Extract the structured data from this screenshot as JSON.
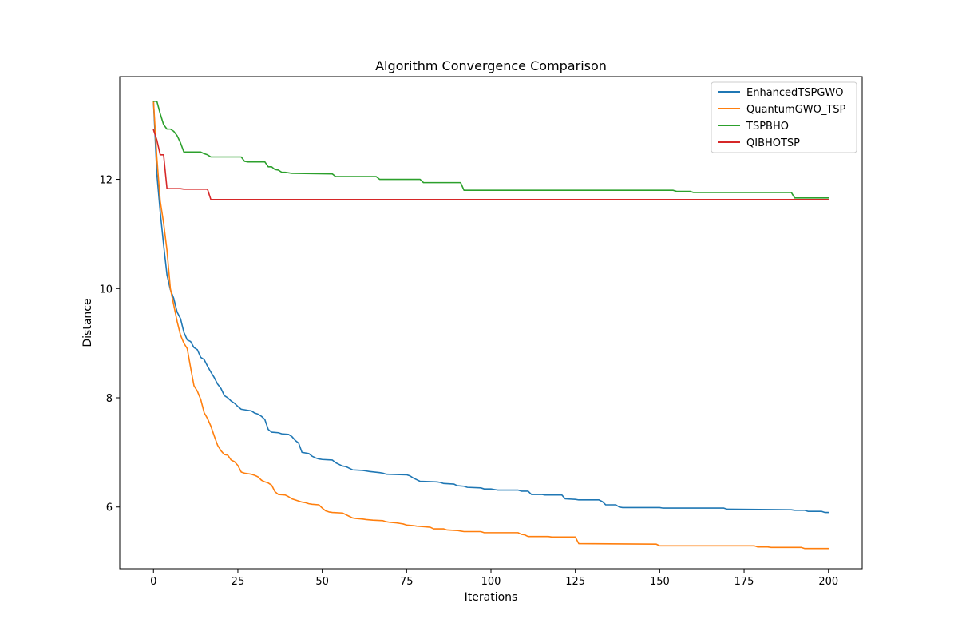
{
  "chart_data": {
    "type": "line",
    "title": "Algorithm Convergence Comparison",
    "xlabel": "Iterations",
    "ylabel": "Distance",
    "xlim": [
      -10,
      210
    ],
    "ylim": [
      4.87,
      13.88
    ],
    "xticks": [
      0,
      25,
      50,
      75,
      100,
      125,
      150,
      175,
      200
    ],
    "yticks": [
      6,
      8,
      10,
      12
    ],
    "grid": false,
    "legend_position": "top-right",
    "series": [
      {
        "name": "EnhancedTSPGWO",
        "color": "#1f77b4",
        "points": [
          [
            0,
            13.43
          ],
          [
            1,
            12.1
          ],
          [
            2,
            11.4
          ],
          [
            3,
            10.8
          ],
          [
            4,
            10.25
          ],
          [
            5,
            9.98
          ],
          [
            6,
            9.82
          ],
          [
            7,
            9.57
          ],
          [
            8,
            9.45
          ],
          [
            9,
            9.2
          ],
          [
            10,
            9.06
          ],
          [
            11,
            9.03
          ],
          [
            12,
            8.92
          ],
          [
            13,
            8.88
          ],
          [
            14,
            8.74
          ],
          [
            15,
            8.7
          ],
          [
            16,
            8.58
          ],
          [
            17,
            8.47
          ],
          [
            18,
            8.37
          ],
          [
            19,
            8.25
          ],
          [
            20,
            8.17
          ],
          [
            21,
            8.04
          ],
          [
            22,
            8.0
          ],
          [
            23,
            7.94
          ],
          [
            24,
            7.9
          ],
          [
            25,
            7.84
          ],
          [
            26,
            7.79
          ],
          [
            28,
            7.77
          ],
          [
            29,
            7.76
          ],
          [
            30,
            7.72
          ],
          [
            31,
            7.7
          ],
          [
            32,
            7.66
          ],
          [
            33,
            7.6
          ],
          [
            34,
            7.42
          ],
          [
            35,
            7.37
          ],
          [
            37,
            7.36
          ],
          [
            38,
            7.34
          ],
          [
            40,
            7.33
          ],
          [
            41,
            7.29
          ],
          [
            42,
            7.22
          ],
          [
            43,
            7.17
          ],
          [
            44,
            7.0
          ],
          [
            46,
            6.98
          ],
          [
            47,
            6.93
          ],
          [
            48,
            6.9
          ],
          [
            49,
            6.88
          ],
          [
            50,
            6.87
          ],
          [
            53,
            6.86
          ],
          [
            54,
            6.81
          ],
          [
            55,
            6.78
          ],
          [
            56,
            6.75
          ],
          [
            57,
            6.74
          ],
          [
            58,
            6.71
          ],
          [
            59,
            6.68
          ],
          [
            62,
            6.67
          ],
          [
            63,
            6.66
          ],
          [
            64,
            6.65
          ],
          [
            67,
            6.63
          ],
          [
            68,
            6.62
          ],
          [
            69,
            6.6
          ],
          [
            75,
            6.59
          ],
          [
            76,
            6.57
          ],
          [
            77,
            6.53
          ],
          [
            78,
            6.5
          ],
          [
            79,
            6.47
          ],
          [
            84,
            6.46
          ],
          [
            85,
            6.45
          ],
          [
            86,
            6.43
          ],
          [
            89,
            6.42
          ],
          [
            90,
            6.39
          ],
          [
            92,
            6.38
          ],
          [
            93,
            6.36
          ],
          [
            97,
            6.35
          ],
          [
            98,
            6.33
          ],
          [
            100,
            6.33
          ],
          [
            101,
            6.32
          ],
          [
            102,
            6.31
          ],
          [
            108,
            6.31
          ],
          [
            109,
            6.29
          ],
          [
            111,
            6.29
          ],
          [
            112,
            6.23
          ],
          [
            115,
            6.23
          ],
          [
            116,
            6.22
          ],
          [
            121,
            6.22
          ],
          [
            122,
            6.15
          ],
          [
            125,
            6.14
          ],
          [
            126,
            6.13
          ],
          [
            132,
            6.13
          ],
          [
            133,
            6.1
          ],
          [
            134,
            6.04
          ],
          [
            137,
            6.04
          ],
          [
            138,
            6.0
          ],
          [
            139,
            5.99
          ],
          [
            150,
            5.99
          ],
          [
            151,
            5.98
          ],
          [
            169,
            5.98
          ],
          [
            170,
            5.96
          ],
          [
            189,
            5.95
          ],
          [
            190,
            5.94
          ],
          [
            193,
            5.94
          ],
          [
            194,
            5.92
          ],
          [
            198,
            5.92
          ],
          [
            199,
            5.9
          ],
          [
            200,
            5.9
          ]
        ]
      },
      {
        "name": "QuantumGWO_TSP",
        "color": "#ff7f0e",
        "points": [
          [
            0,
            13.43
          ],
          [
            1,
            12.4
          ],
          [
            2,
            11.6
          ],
          [
            3,
            11.2
          ],
          [
            4,
            10.7
          ],
          [
            5,
            10.0
          ],
          [
            6,
            9.7
          ],
          [
            7,
            9.4
          ],
          [
            8,
            9.15
          ],
          [
            9,
            9.0
          ],
          [
            10,
            8.9
          ],
          [
            11,
            8.55
          ],
          [
            12,
            8.22
          ],
          [
            13,
            8.12
          ],
          [
            14,
            7.97
          ],
          [
            15,
            7.73
          ],
          [
            16,
            7.62
          ],
          [
            17,
            7.48
          ],
          [
            18,
            7.3
          ],
          [
            19,
            7.13
          ],
          [
            20,
            7.03
          ],
          [
            21,
            6.96
          ],
          [
            22,
            6.95
          ],
          [
            23,
            6.86
          ],
          [
            24,
            6.83
          ],
          [
            25,
            6.76
          ],
          [
            26,
            6.64
          ],
          [
            27,
            6.62
          ],
          [
            29,
            6.6
          ],
          [
            30,
            6.58
          ],
          [
            31,
            6.55
          ],
          [
            32,
            6.49
          ],
          [
            33,
            6.46
          ],
          [
            34,
            6.44
          ],
          [
            35,
            6.4
          ],
          [
            36,
            6.28
          ],
          [
            37,
            6.23
          ],
          [
            39,
            6.22
          ],
          [
            40,
            6.19
          ],
          [
            41,
            6.15
          ],
          [
            42,
            6.13
          ],
          [
            43,
            6.11
          ],
          [
            44,
            6.09
          ],
          [
            45,
            6.08
          ],
          [
            46,
            6.06
          ],
          [
            47,
            6.05
          ],
          [
            49,
            6.04
          ],
          [
            50,
            5.98
          ],
          [
            51,
            5.93
          ],
          [
            52,
            5.91
          ],
          [
            53,
            5.9
          ],
          [
            56,
            5.89
          ],
          [
            57,
            5.86
          ],
          [
            58,
            5.83
          ],
          [
            59,
            5.8
          ],
          [
            60,
            5.79
          ],
          [
            62,
            5.78
          ],
          [
            63,
            5.77
          ],
          [
            65,
            5.76
          ],
          [
            68,
            5.75
          ],
          [
            69,
            5.73
          ],
          [
            70,
            5.72
          ],
          [
            72,
            5.71
          ],
          [
            73,
            5.7
          ],
          [
            74,
            5.69
          ],
          [
            75,
            5.67
          ],
          [
            77,
            5.66
          ],
          [
            78,
            5.65
          ],
          [
            80,
            5.64
          ],
          [
            82,
            5.63
          ],
          [
            83,
            5.6
          ],
          [
            86,
            5.6
          ],
          [
            87,
            5.58
          ],
          [
            90,
            5.57
          ],
          [
            91,
            5.56
          ],
          [
            92,
            5.55
          ],
          [
            97,
            5.55
          ],
          [
            98,
            5.53
          ],
          [
            108,
            5.53
          ],
          [
            109,
            5.5
          ],
          [
            110,
            5.49
          ],
          [
            111,
            5.46
          ],
          [
            117,
            5.46
          ],
          [
            118,
            5.45
          ],
          [
            125,
            5.45
          ],
          [
            126,
            5.33
          ],
          [
            149,
            5.32
          ],
          [
            150,
            5.29
          ],
          [
            178,
            5.29
          ],
          [
            179,
            5.27
          ],
          [
            182,
            5.27
          ],
          [
            183,
            5.26
          ],
          [
            192,
            5.26
          ],
          [
            193,
            5.24
          ],
          [
            200,
            5.24
          ]
        ]
      },
      {
        "name": "TSPBHO",
        "color": "#2ca02c",
        "points": [
          [
            0,
            13.43
          ],
          [
            1,
            13.43
          ],
          [
            2,
            13.2
          ],
          [
            3,
            13.0
          ],
          [
            4,
            12.92
          ],
          [
            5,
            12.92
          ],
          [
            6,
            12.88
          ],
          [
            7,
            12.8
          ],
          [
            8,
            12.67
          ],
          [
            9,
            12.5
          ],
          [
            14,
            12.5
          ],
          [
            15,
            12.47
          ],
          [
            16,
            12.45
          ],
          [
            17,
            12.41
          ],
          [
            26,
            12.41
          ],
          [
            27,
            12.33
          ],
          [
            28,
            12.32
          ],
          [
            33,
            12.32
          ],
          [
            34,
            12.23
          ],
          [
            35,
            12.23
          ],
          [
            36,
            12.18
          ],
          [
            37,
            12.17
          ],
          [
            38,
            12.13
          ],
          [
            39,
            12.13
          ],
          [
            40,
            12.12
          ],
          [
            41,
            12.11
          ],
          [
            53,
            12.1
          ],
          [
            54,
            12.05
          ],
          [
            66,
            12.05
          ],
          [
            67,
            12.0
          ],
          [
            79,
            12.0
          ],
          [
            80,
            11.94
          ],
          [
            91,
            11.94
          ],
          [
            92,
            11.8
          ],
          [
            154,
            11.8
          ],
          [
            155,
            11.78
          ],
          [
            159,
            11.78
          ],
          [
            160,
            11.76
          ],
          [
            189,
            11.76
          ],
          [
            190,
            11.66
          ],
          [
            200,
            11.66
          ]
        ]
      },
      {
        "name": "QIBHOTSP",
        "color": "#d62728",
        "points": [
          [
            0,
            12.91
          ],
          [
            1,
            12.72
          ],
          [
            2,
            12.45
          ],
          [
            3,
            12.45
          ],
          [
            4,
            11.83
          ],
          [
            8,
            11.83
          ],
          [
            9,
            11.82
          ],
          [
            16,
            11.82
          ],
          [
            17,
            11.63
          ],
          [
            200,
            11.63
          ]
        ]
      }
    ]
  }
}
